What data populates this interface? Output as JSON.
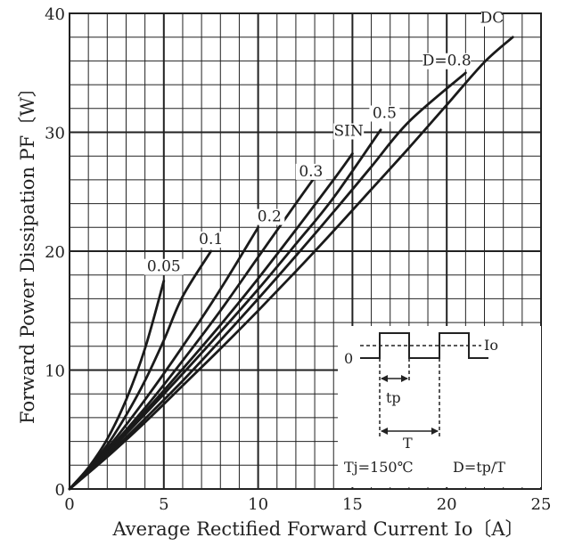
{
  "chart_data": {
    "type": "line",
    "xlabel": "Average Rectified Forward Current Io〔A〕",
    "ylabel": "Forward Power Dissipation PF〔W〕",
    "xlim": [
      0,
      25
    ],
    "ylim": [
      0,
      40
    ],
    "x_ticks": [
      "0",
      "5",
      "10",
      "15",
      "20",
      "25"
    ],
    "y_ticks": [
      "0",
      "10",
      "20",
      "30",
      "40"
    ],
    "grid": true,
    "series": [
      {
        "name": "0.05",
        "points": [
          [
            0,
            0
          ],
          [
            1,
            1.8
          ],
          [
            2,
            4.2
          ],
          [
            3,
            7.5
          ],
          [
            4,
            11.8
          ],
          [
            5,
            17.5
          ]
        ]
      },
      {
        "name": "0.1",
        "points": [
          [
            0,
            0
          ],
          [
            1,
            1.7
          ],
          [
            2,
            3.7
          ],
          [
            3,
            6.2
          ],
          [
            4,
            9.1
          ],
          [
            5,
            12.5
          ],
          [
            6,
            16.2
          ],
          [
            7.5,
            20
          ]
        ]
      },
      {
        "name": "0.2",
        "points": [
          [
            0,
            0
          ],
          [
            2,
            3.4
          ],
          [
            4,
            7.5
          ],
          [
            6,
            12
          ],
          [
            8,
            16.8
          ],
          [
            10,
            22
          ]
        ]
      },
      {
        "name": "0.3",
        "points": [
          [
            0,
            0
          ],
          [
            2,
            3.2
          ],
          [
            4,
            6.8
          ],
          [
            6,
            10.8
          ],
          [
            8,
            15
          ],
          [
            10,
            19.5
          ],
          [
            12,
            24
          ],
          [
            12.9,
            26
          ]
        ]
      },
      {
        "name": "SIN",
        "points": [
          [
            0,
            0
          ],
          [
            2,
            3.1
          ],
          [
            4,
            6.5
          ],
          [
            6,
            10.1
          ],
          [
            8,
            13.8
          ],
          [
            10,
            17.7
          ],
          [
            12,
            21.8
          ],
          [
            14,
            26
          ],
          [
            15,
            28.2
          ]
        ]
      },
      {
        "name": "0.5",
        "points": [
          [
            0,
            0
          ],
          [
            2,
            3
          ],
          [
            4,
            6.3
          ],
          [
            6,
            9.7
          ],
          [
            8,
            13.2
          ],
          [
            10,
            16.8
          ],
          [
            12,
            20.6
          ],
          [
            14,
            24.5
          ],
          [
            16.5,
            30.2
          ]
        ]
      },
      {
        "name": "D=0.8",
        "points": [
          [
            0,
            0
          ],
          [
            2,
            2.8
          ],
          [
            4,
            5.9
          ],
          [
            6,
            9.1
          ],
          [
            8,
            12.5
          ],
          [
            10,
            16
          ],
          [
            12,
            19.6
          ],
          [
            14,
            23.3
          ],
          [
            16,
            27.1
          ],
          [
            18,
            30.9
          ],
          [
            21,
            35
          ]
        ]
      },
      {
        "name": "DC",
        "points": [
          [
            0,
            0
          ],
          [
            2,
            2.7
          ],
          [
            4,
            5.6
          ],
          [
            6,
            8.7
          ],
          [
            8,
            11.8
          ],
          [
            10,
            15
          ],
          [
            12,
            18.3
          ],
          [
            14,
            21.7
          ],
          [
            16,
            25.2
          ],
          [
            18,
            28.7
          ],
          [
            20,
            32.3
          ],
          [
            22,
            35.9
          ],
          [
            23.5,
            38
          ]
        ]
      }
    ],
    "labels": [
      {
        "series": "0.05",
        "text": "0.05",
        "x": 5,
        "y": 18.3
      },
      {
        "series": "0.1",
        "text": "0.1",
        "x": 7.5,
        "y": 20.6
      },
      {
        "series": "0.2",
        "text": "0.2",
        "x": 10.6,
        "y": 22.5
      },
      {
        "series": "0.3",
        "text": "0.3",
        "x": 12.8,
        "y": 26.3
      },
      {
        "series": "SIN",
        "text": "SIN",
        "x": 14.8,
        "y": 29.7
      },
      {
        "series": "0.5",
        "text": "0.5",
        "x": 16.7,
        "y": 31.2
      },
      {
        "series": "D=0.8",
        "text": "D=0.8",
        "x": 20,
        "y": 35.6
      },
      {
        "series": "DC",
        "text": "DC",
        "x": 22.4,
        "y": 39.2
      }
    ],
    "inset": {
      "zero_label": "0",
      "io_label": "Io",
      "tp_label": "tp",
      "t_label": "T",
      "tj_label": "Tj=150℃",
      "d_label": "D=tp/T"
    }
  }
}
